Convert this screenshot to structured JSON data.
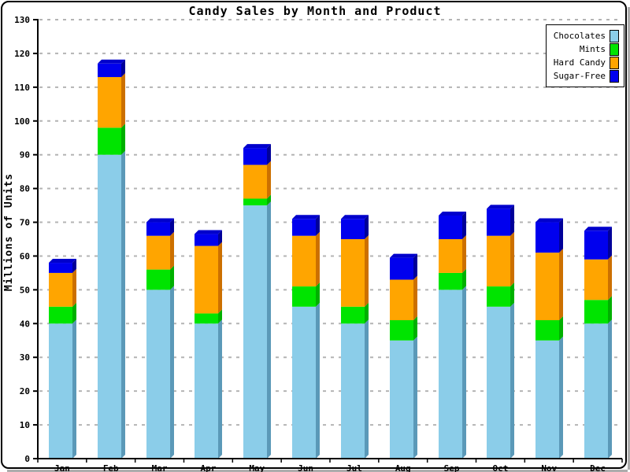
{
  "chart_data": {
    "type": "bar",
    "stacked": true,
    "pseudo_3d": true,
    "title": "Candy Sales by Month and Product",
    "ylabel": "Millions of Units",
    "xlabel": "",
    "ylim": [
      0,
      130
    ],
    "y_ticks": [
      0,
      10,
      20,
      30,
      40,
      50,
      60,
      70,
      80,
      90,
      100,
      110,
      120,
      130
    ],
    "grid": "horizontal-dashed",
    "legend_position": "top-right",
    "categories": [
      "Jan",
      "Feb",
      "Mar",
      "Apr",
      "May",
      "Jun",
      "Jul",
      "Aug",
      "Sep",
      "Oct",
      "Nov",
      "Dec"
    ],
    "series": [
      {
        "name": "Chocolates",
        "color": "#8BCDE9",
        "side_color": "#5B99B8",
        "values": [
          40,
          90,
          50,
          40,
          75,
          45,
          40,
          35,
          50,
          45,
          35,
          40
        ]
      },
      {
        "name": "Mints",
        "color": "#00E400",
        "side_color": "#00B000",
        "values": [
          5,
          8,
          6,
          3,
          2,
          6,
          5,
          6,
          5,
          6,
          6,
          7
        ]
      },
      {
        "name": "Hard Candy",
        "color": "#FFA500",
        "side_color": "#CC7000",
        "values": [
          10,
          15,
          10,
          20,
          10,
          15,
          20,
          12,
          10,
          15,
          20,
          12
        ]
      },
      {
        "name": "Sugar-Free",
        "color": "#0000EE",
        "side_color": "#000099",
        "top_color": "#0000CC",
        "values": [
          3,
          4,
          4,
          3.5,
          5,
          5,
          6,
          6.5,
          7,
          8,
          9,
          8.5
        ]
      }
    ],
    "stack_totals": [
      58,
      117,
      70,
      66.5,
      92,
      71,
      71,
      59.5,
      72,
      74,
      70,
      67.5
    ],
    "colors": {
      "grid": "#b4b4b4",
      "axis": "#000000",
      "background": "#ffffff",
      "frame_shadow": "#adadad"
    }
  }
}
